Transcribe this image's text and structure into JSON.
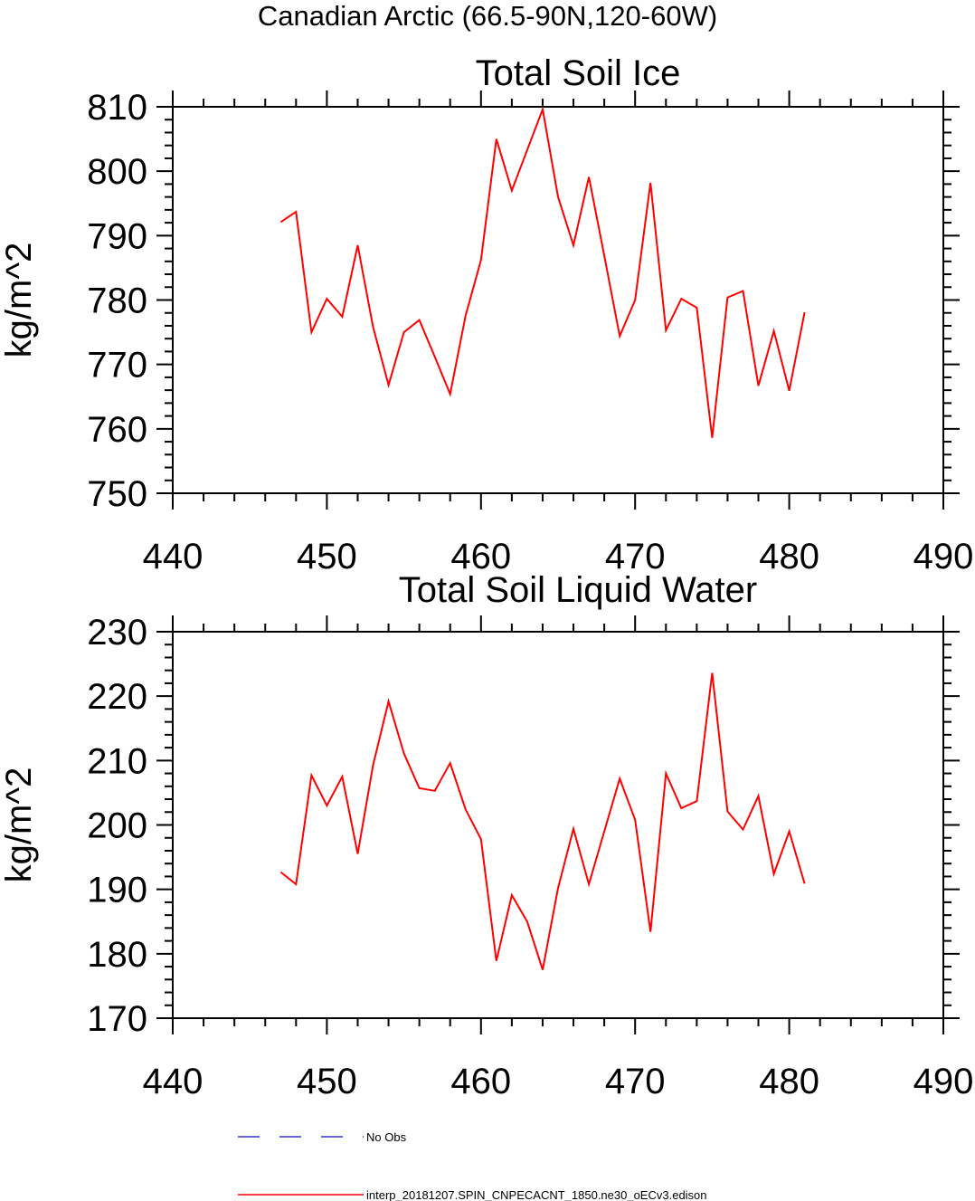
{
  "figure_title": "Canadian Arctic (66.5-90N,120-60W)",
  "chart_data": [
    {
      "type": "line",
      "title": "Total Soil Ice",
      "xlabel": "",
      "ylabel": "kg/m^2",
      "xlim": [
        440,
        490
      ],
      "ylim": [
        750,
        810
      ],
      "xticks": [
        440,
        450,
        460,
        470,
        480,
        490
      ],
      "yticks": [
        750,
        760,
        770,
        780,
        790,
        800,
        810
      ],
      "grid": false,
      "series": [
        {
          "name": "interp_20181207.SPIN_CNPECACNT_1850.ne30_oECv3.edison",
          "color": "#ff0000",
          "x": [
            447,
            448,
            449,
            450,
            451,
            452,
            453,
            454,
            455,
            456,
            457,
            458,
            459,
            460,
            461,
            462,
            463,
            464,
            465,
            466,
            467,
            468,
            469,
            470,
            471,
            472,
            473,
            474,
            475,
            476,
            477,
            478,
            479,
            480,
            481
          ],
          "values": [
            792.1,
            793.7,
            775.0,
            780.2,
            777.4,
            788.5,
            775.8,
            766.8,
            775.0,
            776.9,
            771.2,
            765.4,
            777.6,
            786.2,
            805.0,
            797.0,
            803.3,
            809.6,
            796.0,
            788.5,
            799.1,
            786.9,
            774.4,
            780.0,
            798.2,
            775.3,
            780.2,
            778.8,
            758.6,
            780.4,
            781.4,
            766.7,
            775.2,
            765.9,
            778.1
          ]
        }
      ]
    },
    {
      "type": "line",
      "title": "Total Soil Liquid Water",
      "xlabel": "",
      "ylabel": "kg/m^2",
      "xlim": [
        440,
        490
      ],
      "ylim": [
        170,
        230
      ],
      "xticks": [
        440,
        450,
        460,
        470,
        480,
        490
      ],
      "yticks": [
        170,
        180,
        190,
        200,
        210,
        220,
        230
      ],
      "grid": false,
      "series": [
        {
          "name": "interp_20181207.SPIN_CNPECACNT_1850.ne30_oECv3.edison",
          "color": "#ff0000",
          "x": [
            447,
            448,
            449,
            450,
            451,
            452,
            453,
            454,
            455,
            456,
            457,
            458,
            459,
            460,
            461,
            462,
            463,
            464,
            465,
            466,
            467,
            468,
            469,
            470,
            471,
            472,
            473,
            474,
            475,
            476,
            477,
            478,
            479,
            480,
            481
          ],
          "values": [
            192.7,
            190.8,
            207.7,
            203.0,
            207.5,
            195.5,
            209.3,
            219.2,
            211.1,
            205.7,
            205.3,
            209.6,
            202.4,
            197.8,
            178.9,
            189.1,
            185.0,
            177.5,
            190.2,
            199.4,
            190.8,
            199.0,
            207.2,
            200.8,
            183.4,
            208.0,
            202.6,
            203.7,
            223.6,
            202.1,
            199.3,
            204.5,
            192.4,
            199.0,
            190.9
          ]
        }
      ]
    }
  ],
  "legend": {
    "placement": "bottom",
    "items": [
      {
        "label": "No Obs",
        "color": "#3333cc",
        "style": "dashed"
      },
      {
        "label": "interp_20181207.SPIN_CNPECACNT_1850.ne30_oECv3.edison",
        "color": "#ff0000",
        "style": "solid"
      }
    ]
  }
}
